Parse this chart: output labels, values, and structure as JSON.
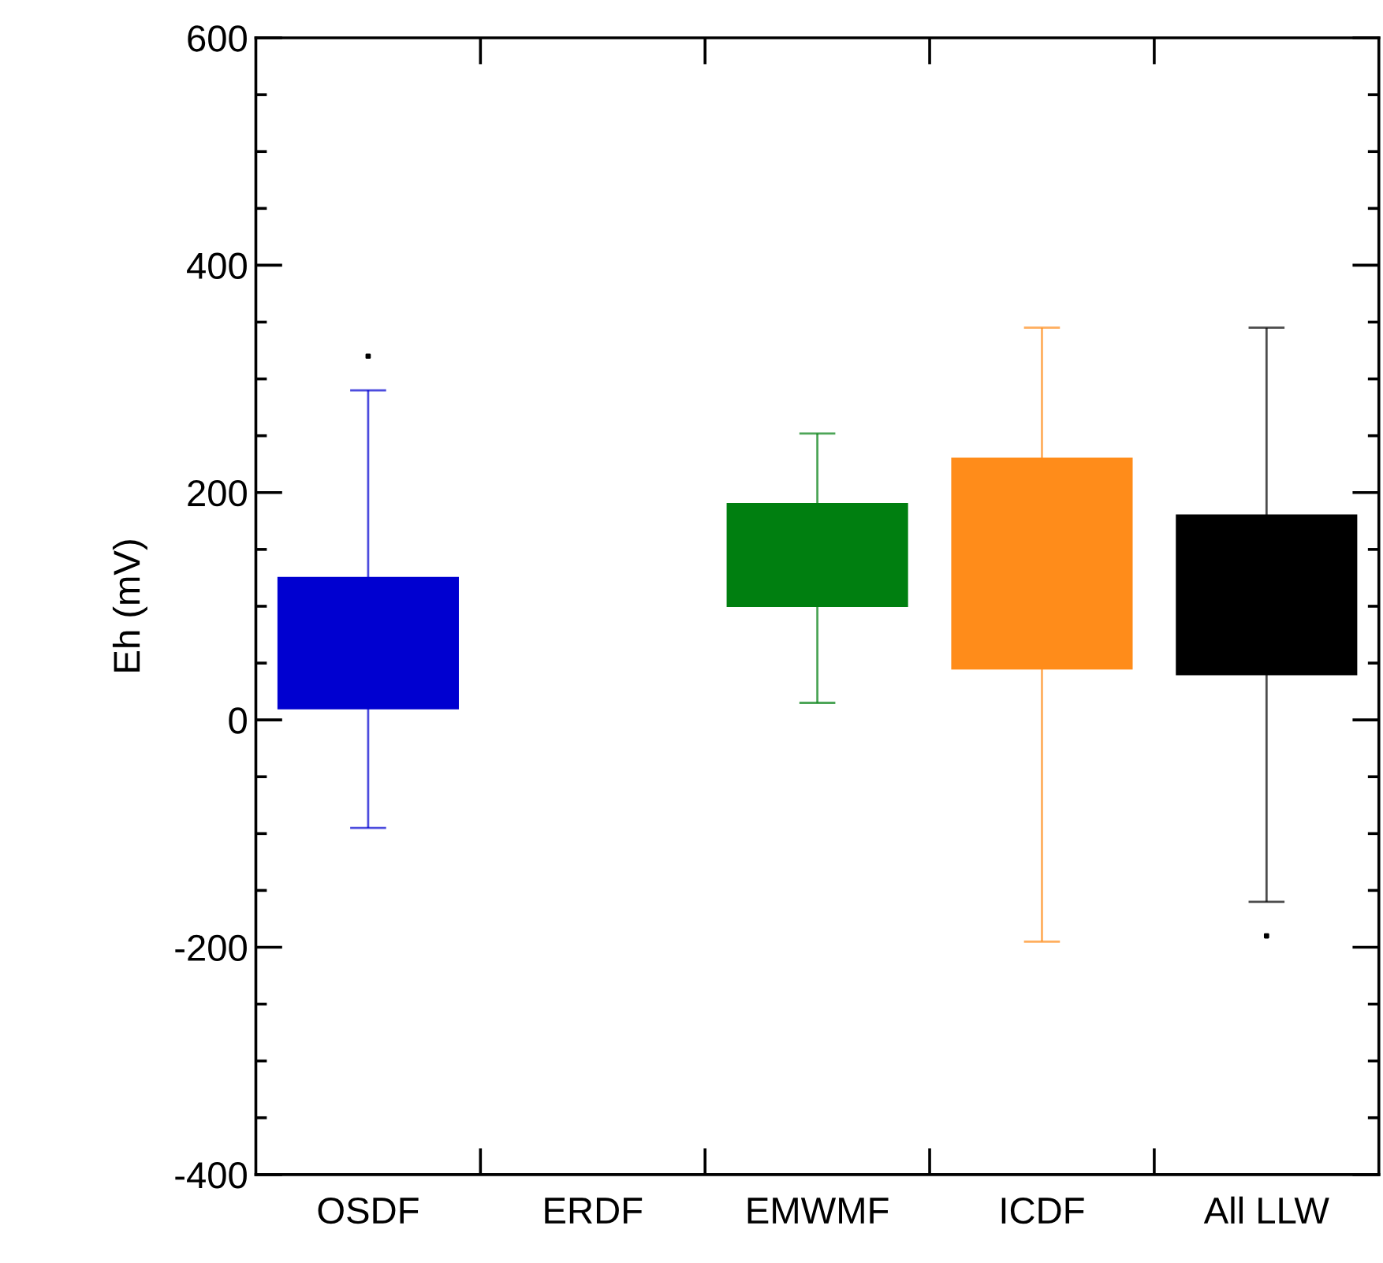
{
  "chart_data": {
    "type": "box",
    "ylabel": "Eh (mV)",
    "categories": [
      "OSDF",
      "ERDF",
      "EMWMF",
      "ICDF",
      "All LLW"
    ],
    "colors": [
      "#0000d0",
      null,
      "#007f10",
      "#ff8c1a",
      "#000000"
    ],
    "boxes": [
      {
        "low": -95,
        "q1": 10,
        "median": null,
        "q3": 125,
        "high": 290,
        "outliers": [
          320
        ]
      },
      null,
      {
        "low": 15,
        "q1": 100,
        "median": null,
        "q3": 190,
        "high": 252
      },
      {
        "low": -195,
        "q1": 45,
        "median": null,
        "q3": 230,
        "high": 345
      },
      {
        "low": -160,
        "q1": 40,
        "median": null,
        "q3": 180,
        "high": 345,
        "outliers": [
          -190
        ]
      }
    ],
    "ylim": [
      -400,
      600
    ],
    "yticks": [
      -400,
      -200,
      0,
      200,
      400,
      600
    ],
    "grid": false
  }
}
